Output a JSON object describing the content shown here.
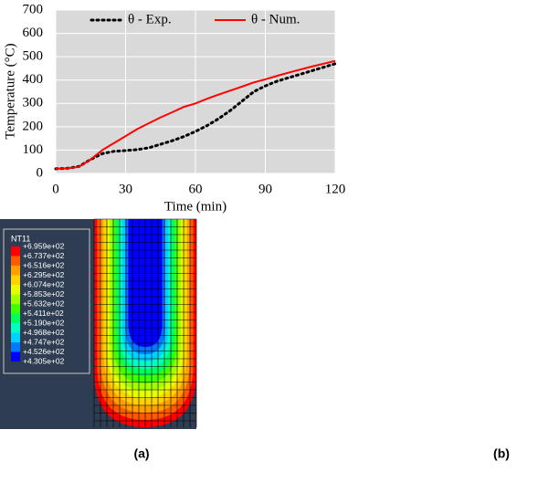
{
  "chart_data": {
    "type": "line",
    "y_label": "Temperature (°C)",
    "x_label": "Time (min)",
    "x": [
      0,
      5,
      10,
      15,
      20,
      25,
      30,
      35,
      40,
      45,
      50,
      55,
      60,
      65,
      70,
      75,
      80,
      85,
      90,
      95,
      100,
      105,
      110,
      115,
      120
    ],
    "series": [
      {
        "name": "θ -  Exp.",
        "color": "#000000",
        "dash": "dotted",
        "values": [
          20,
          22,
          30,
          60,
          85,
          95,
          98,
          102,
          110,
          125,
          140,
          158,
          180,
          205,
          235,
          270,
          310,
          350,
          375,
          395,
          410,
          425,
          440,
          455,
          470
        ]
      },
      {
        "name": "θ - Num.",
        "color": "#ff0000",
        "dash": "solid",
        "values": [
          20,
          22,
          28,
          60,
          100,
          130,
          160,
          190,
          215,
          240,
          262,
          285,
          300,
          320,
          338,
          355,
          372,
          390,
          403,
          418,
          432,
          445,
          458,
          470,
          482
        ]
      }
    ],
    "xlim": [
      0,
      120
    ],
    "xticks": [
      0,
      30,
      60,
      90,
      120
    ],
    "ylim": [
      0,
      700
    ],
    "yticks": [
      0,
      100,
      200,
      300,
      400,
      500,
      600,
      700
    ],
    "grid": true
  },
  "contour": {
    "legend_title": "NT11",
    "labels": [
      "+6.959e+02",
      "+6.737e+02",
      "+6.516e+02",
      "+6.295e+02",
      "+6.074e+02",
      "+5.853e+02",
      "+5.632e+02",
      "+5.411e+02",
      "+5.190e+02",
      "+4.968e+02",
      "+4.747e+02",
      "+4.526e+02",
      "+4.305e+02"
    ],
    "colors": [
      "#ff0000",
      "#ff5a00",
      "#ffa000",
      "#ffd200",
      "#e6ff00",
      "#a0ff00",
      "#40ff00",
      "#00ff5a",
      "#00ffc0",
      "#00d2ff",
      "#0078ff",
      "#0000ff"
    ]
  },
  "captions": {
    "a": "(a)",
    "b": "(b)"
  }
}
